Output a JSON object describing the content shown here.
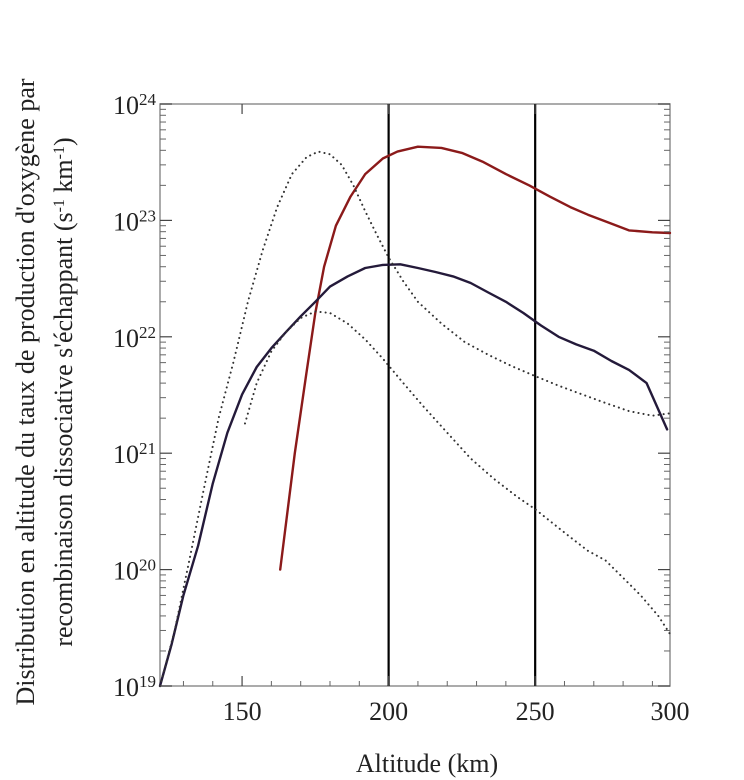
{
  "chart_data": {
    "type": "line",
    "xlabel": "Altitude (km)",
    "ylabel_line1": "Distribution en altitude du taux de production d'oxygène par",
    "ylabel_line2": "recombinaison dissociative s'échappant (s",
    "ylabel_sup1": "-1",
    "ylabel_mid": " km",
    "ylabel_sup2": "-1",
    "ylabel_end": ")",
    "xlim": [
      122,
      296
    ],
    "ylim_log10": [
      19,
      24
    ],
    "scale_y": "log",
    "x_ticks": [
      150,
      200,
      250,
      300
    ],
    "y_ticks": [
      {
        "exp": 19,
        "base": "10",
        "sup": "19"
      },
      {
        "exp": 20,
        "base": "10",
        "sup": "20"
      },
      {
        "exp": 21,
        "base": "10",
        "sup": "21"
      },
      {
        "exp": 22,
        "base": "10",
        "sup": "22"
      },
      {
        "exp": 23,
        "base": "10",
        "sup": "23"
      },
      {
        "exp": 24,
        "base": "10",
        "sup": "24"
      }
    ],
    "vertical_lines": [
      200,
      250
    ],
    "colors": {
      "red": "#8b1a1a",
      "navy": "#241a3a",
      "dotted": "#333333",
      "vline": "#000000",
      "frame": "#8f8f8f"
    },
    "series": [
      {
        "style": "red",
        "x": [
          163,
          168,
          172,
          175,
          178,
          182,
          187,
          192,
          198,
          203,
          210,
          218,
          225,
          232,
          240,
          248,
          255,
          262,
          268,
          275,
          282,
          290,
          296
        ],
        "y": [
          1e+20,
          1e+21,
          5e+21,
          1.6e+22,
          4e+22,
          9e+22,
          1.6e+23,
          2.5e+23,
          3.4e+23,
          3.9e+23,
          4.3e+23,
          4.2e+23,
          3.8e+23,
          3.2e+23,
          2.5e+23,
          2e+23,
          1.6e+23,
          1.3e+23,
          1.12e+23,
          9.6e+22,
          8.2e+22,
          7.9e+22,
          7.8e+22
        ]
      },
      {
        "style": "navy",
        "x": [
          122,
          126,
          130,
          135,
          140,
          145,
          150,
          155,
          160,
          165,
          170,
          175,
          180,
          186,
          192,
          198,
          204,
          210,
          216,
          222,
          228,
          234,
          240,
          246,
          252,
          258,
          264,
          270,
          276,
          282,
          288,
          295
        ],
        "y": [
          1e+19,
          2.3e+19,
          6e+19,
          1.6e+20,
          5.5e+20,
          1.5e+21,
          3.2e+21,
          5.5e+21,
          8e+21,
          1.1e+22,
          1.5e+22,
          2e+22,
          2.7e+22,
          3.3e+22,
          3.9e+22,
          4.15e+22,
          4.2e+22,
          3.9e+22,
          3.6e+22,
          3.3e+22,
          2.9e+22,
          2.4e+22,
          2e+22,
          1.6e+22,
          1.25e+22,
          1e+22,
          8.6e+21,
          7.6e+21,
          6.2e+21,
          5.2e+21,
          4e+21,
          1.6e+21
        ]
      },
      {
        "style": "dotted",
        "x": [
          122,
          127,
          132,
          137,
          142,
          147,
          152,
          157,
          162,
          167,
          172,
          176,
          180,
          184,
          188,
          192,
          196,
          200,
          205,
          210,
          218,
          226,
          234,
          242,
          250,
          258,
          266,
          274,
          282,
          290,
          296
        ],
        "y": [
          1e+19,
          3e+19,
          1.2e+20,
          5e+20,
          2e+21,
          6e+21,
          2e+22,
          5.5e+22,
          1.3e+23,
          2.5e+23,
          3.5e+23,
          3.9e+23,
          3.7e+23,
          3e+23,
          2e+23,
          1.2e+23,
          7.5e+22,
          4.8e+22,
          3e+22,
          2e+22,
          1.3e+22,
          9e+21,
          7e+21,
          5.6e+21,
          4.6e+21,
          3.8e+21,
          3.2e+21,
          2.7e+21,
          2.3e+21,
          2.1e+21,
          2.2e+21
        ]
      },
      {
        "style": "dotted",
        "x": [
          151,
          155,
          160,
          165,
          170,
          175,
          180,
          186,
          192,
          198,
          205,
          212,
          220,
          228,
          236,
          244,
          250,
          256,
          262,
          268,
          274,
          280,
          286,
          292,
          296
        ],
        "y": [
          1.8e+21,
          4e+21,
          7.5e+21,
          1.1e+22,
          1.45e+22,
          1.65e+22,
          1.6e+22,
          1.3e+22,
          9.5e+21,
          6.5e+21,
          4e+21,
          2.5e+21,
          1.5e+21,
          9e+20,
          6e+20,
          4.2e+20,
          3.3e+20,
          2.5e+20,
          1.9e+20,
          1.45e+20,
          1.2e+20,
          8.5e+19,
          6e+19,
          4e+19,
          2.8e+19
        ]
      }
    ]
  }
}
